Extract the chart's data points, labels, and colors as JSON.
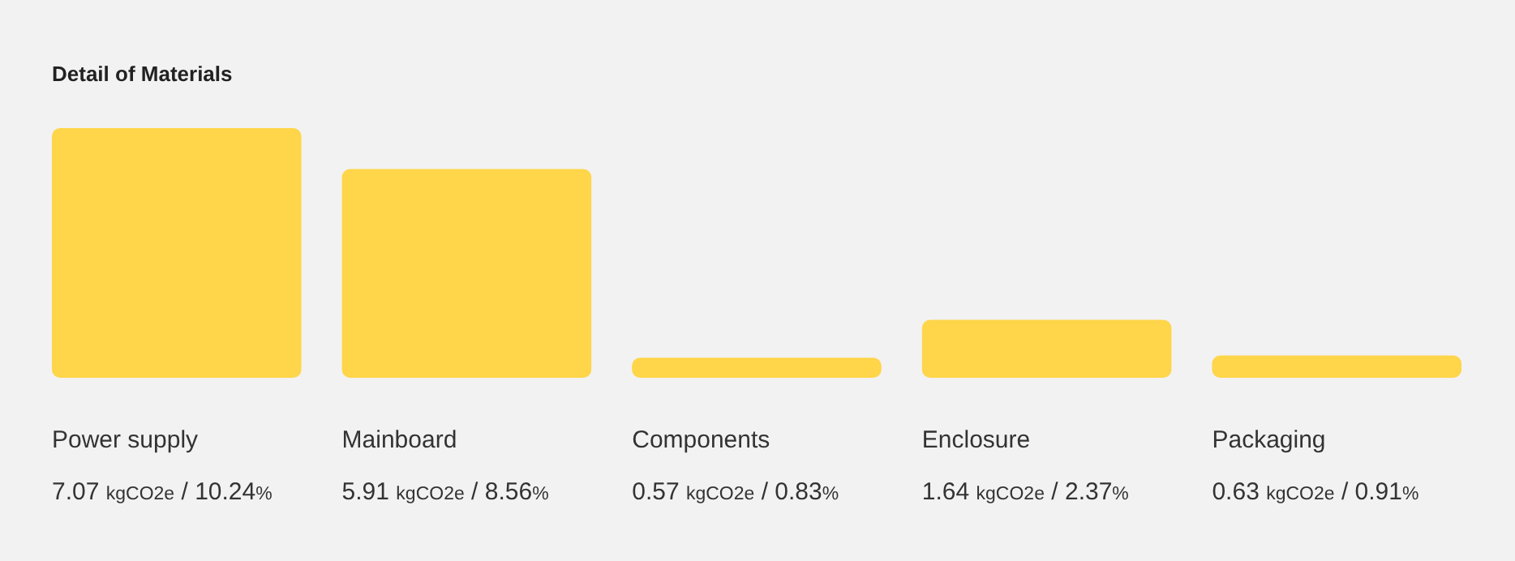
{
  "chart_data": {
    "type": "bar",
    "title": "Detail of Materials",
    "categories": [
      "Power supply",
      "Mainboard",
      "Components",
      "Enclosure",
      "Packaging"
    ],
    "values": [
      7.07,
      5.91,
      0.57,
      1.64,
      0.63
    ],
    "value_labels": [
      "7.07 kgCO2e / 10.24%",
      "5.91 kgCO2e / 8.56%",
      "0.57 kgCO2e / 0.83%",
      "1.64 kgCO2e / 2.37%",
      "0.63 kgCO2e / 0.91%"
    ],
    "color": "#ffd54a"
  }
}
